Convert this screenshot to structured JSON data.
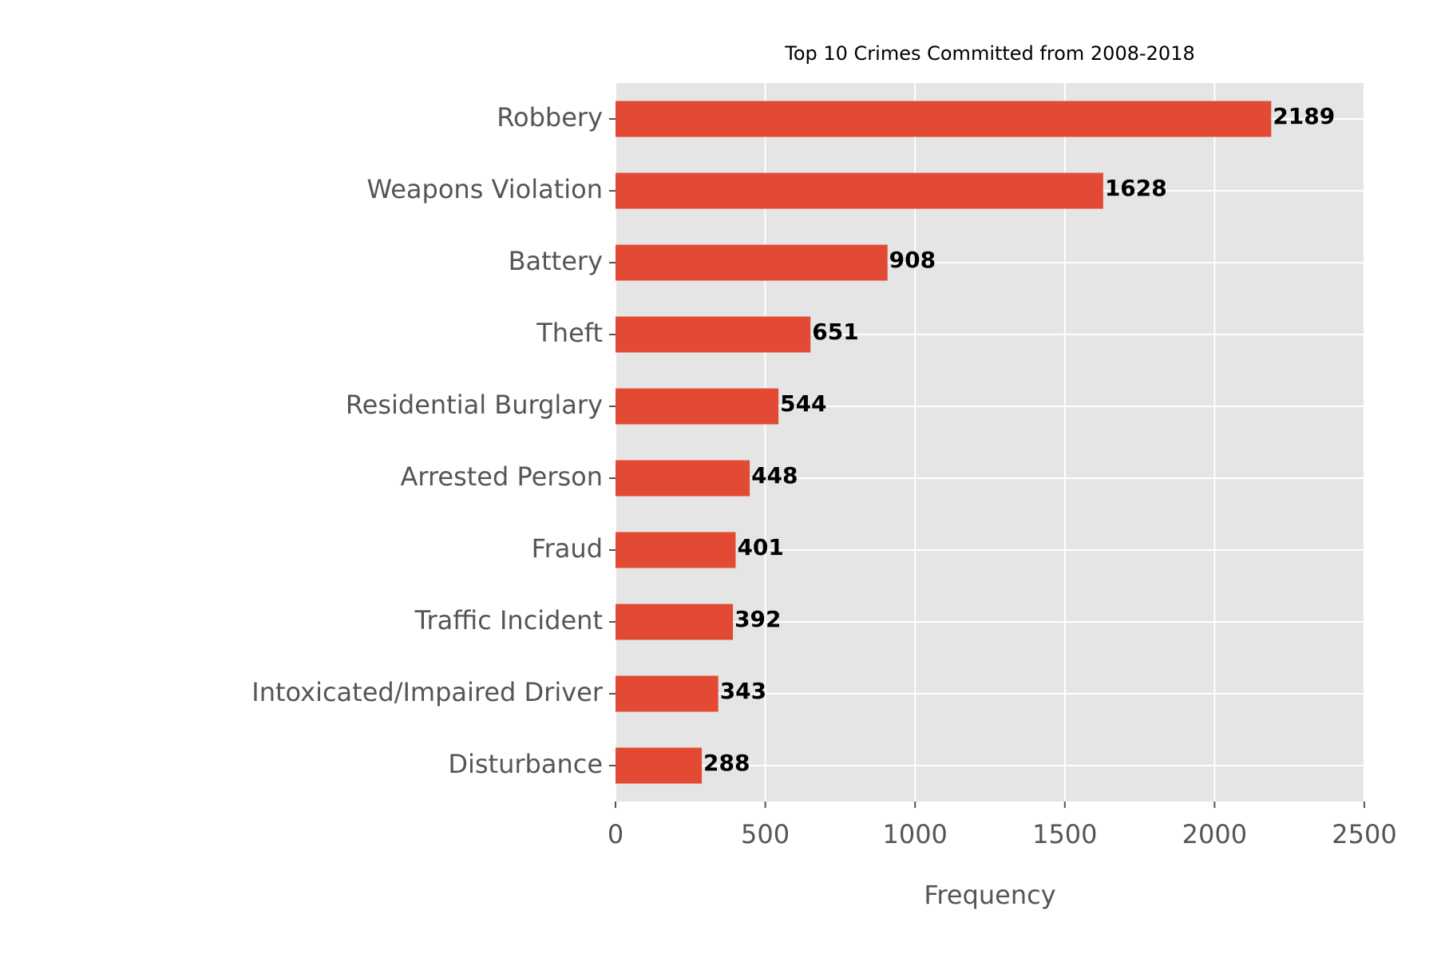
{
  "chart_data": {
    "type": "bar",
    "orientation": "horizontal",
    "title": "Top 10 Crimes Committed from 2008-2018",
    "xlabel": "Frequency",
    "ylabel": "",
    "categories": [
      "Robbery",
      "Weapons Violation",
      "Battery",
      "Theft",
      "Residential Burglary",
      "Arrested Person",
      "Fraud",
      "Traffic Incident",
      "Intoxicated/Impaired Driver",
      "Disturbance"
    ],
    "values": [
      2189,
      1628,
      908,
      651,
      544,
      448,
      401,
      392,
      343,
      288
    ],
    "xlim": [
      0,
      2500
    ],
    "xticks": [
      0,
      500,
      1000,
      1500,
      2000,
      2500
    ],
    "xtick_labels": [
      "0",
      "500",
      "1000",
      "1500",
      "2000",
      "2500"
    ],
    "grid": true,
    "legend": "none",
    "colors": {
      "bar": "#E24A33",
      "plot_background": "#E5E5E5",
      "grid": "#FFFFFF",
      "tick_text": "#555555",
      "data_label": "#000000"
    }
  }
}
